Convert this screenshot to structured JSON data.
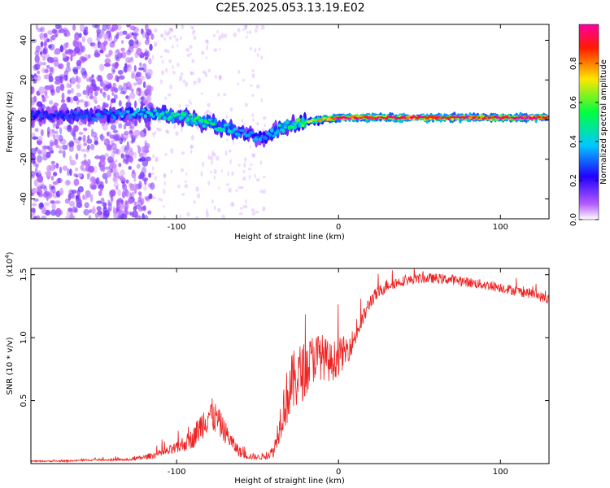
{
  "figure": {
    "title": "C2E5.2025.053.13.19.E02"
  },
  "chart_data": [
    {
      "type": "heatmap",
      "xlabel": "Height of straight line (km)",
      "ylabel": "Frequency (Hz)",
      "xlim": [
        -190,
        130
      ],
      "ylim": [
        -50,
        48
      ],
      "xticks": [
        -100,
        0,
        100
      ],
      "xtick_labels": [
        "-100",
        "0",
        "100"
      ],
      "yticks": [
        -40,
        -20,
        0,
        20,
        40
      ],
      "ytick_labels": [
        "-40",
        "-20",
        "0",
        "20",
        "40"
      ],
      "colorbar": {
        "label": "Normalized spectral amplitude",
        "range": [
          0,
          1
        ],
        "ticks": [
          0.0,
          0.2,
          0.4,
          0.6,
          0.8
        ],
        "tick_labels": [
          "0.0",
          "0.2",
          "0.4",
          "0.6",
          "0.8"
        ],
        "colormap": "rainbow",
        "colors": [
          "#ffffff",
          "#b45cff",
          "#2200ff",
          "#00c8ff",
          "#00ff40",
          "#ffe600",
          "#ff1a00",
          "#ff00a0"
        ]
      },
      "ridge": {
        "x": [
          -170,
          -150,
          -130,
          -110,
          -90,
          -70,
          -55,
          -45,
          -35,
          -20,
          -10,
          0,
          20,
          60,
          90,
          110,
          130
        ],
        "y": [
          2,
          2,
          3,
          3,
          0,
          -4,
          -8,
          -9,
          -4,
          -1,
          0,
          1,
          1,
          1,
          1,
          1,
          1
        ],
        "amplitude": [
          0.25,
          0.3,
          0.35,
          0.45,
          0.5,
          0.45,
          0.35,
          0.3,
          0.45,
          0.6,
          0.75,
          0.95,
          0.95,
          0.95,
          0.9,
          0.95,
          0.95
        ]
      },
      "grid": false,
      "legend": "none"
    },
    {
      "type": "line",
      "xlabel": "Height of straight line (km)",
      "ylabel": "SNR (10 * v/v)",
      "multiplier_label": "(x10^4)",
      "xlim": [
        -190,
        130
      ],
      "ylim": [
        0,
        1.55
      ],
      "xticks": [
        -100,
        0,
        100
      ],
      "xtick_labels": [
        "-100",
        "0",
        "100"
      ],
      "yticks": [
        0.5,
        1.0,
        1.5
      ],
      "ytick_labels": [
        "0.5",
        "1.0",
        "1.5"
      ],
      "series": [
        {
          "color": "#ee2222",
          "x": [
            -190,
            -170,
            -150,
            -130,
            -120,
            -110,
            -100,
            -90,
            -85,
            -80,
            -75,
            -70,
            -65,
            -60,
            -55,
            -50,
            -45,
            -40,
            -35,
            -30,
            -25,
            -20,
            -15,
            -10,
            -5,
            0,
            5,
            10,
            15,
            20,
            30,
            40,
            50,
            60,
            70,
            80,
            90,
            100,
            110,
            120,
            130
          ],
          "y": [
            0.02,
            0.02,
            0.03,
            0.03,
            0.05,
            0.08,
            0.12,
            0.2,
            0.3,
            0.4,
            0.35,
            0.25,
            0.15,
            0.08,
            0.06,
            0.05,
            0.06,
            0.1,
            0.4,
            0.6,
            0.7,
            0.75,
            0.85,
            0.85,
            0.8,
            0.85,
            0.9,
            1.0,
            1.15,
            1.3,
            1.42,
            1.45,
            1.47,
            1.47,
            1.46,
            1.44,
            1.42,
            1.4,
            1.37,
            1.35,
            1.3
          ],
          "noise": [
            0.005,
            0.006,
            0.008,
            0.01,
            0.02,
            0.03,
            0.05,
            0.08,
            0.12,
            0.15,
            0.12,
            0.09,
            0.06,
            0.04,
            0.03,
            0.02,
            0.03,
            0.05,
            0.18,
            0.25,
            0.25,
            0.22,
            0.2,
            0.18,
            0.16,
            0.15,
            0.12,
            0.08,
            0.07,
            0.06,
            0.05,
            0.04,
            0.04,
            0.04,
            0.04,
            0.04,
            0.04,
            0.04,
            0.04,
            0.04,
            0.04
          ]
        }
      ],
      "grid": false,
      "legend": "none"
    }
  ]
}
